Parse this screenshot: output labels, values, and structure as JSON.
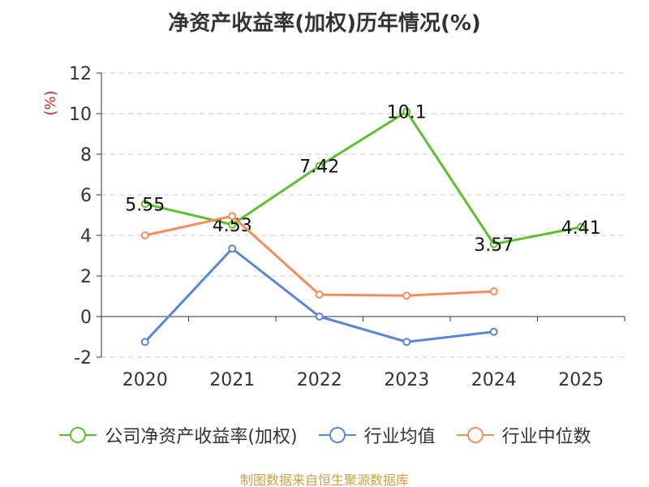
{
  "chart_data": {
    "type": "line",
    "title": "净资产收益率(加权)历年情况(%)",
    "ylabel": "(%)",
    "xlabel": "",
    "categories": [
      "2020",
      "2021",
      "2022",
      "2023",
      "2024",
      "2025"
    ],
    "ylim": [
      -2,
      12
    ],
    "yticks": [
      -2,
      0,
      2,
      4,
      6,
      8,
      10,
      12
    ],
    "grid": true,
    "legend_position": "bottom",
    "series": [
      {
        "name": "公司净资产收益率(加权)",
        "color": "#5cc12c",
        "values": [
          5.55,
          4.53,
          7.42,
          10.1,
          3.57,
          4.41
        ],
        "labels": [
          "5.55",
          "4.53",
          "7.42",
          "10.1",
          "3.57",
          "4.41"
        ],
        "show_labels": true
      },
      {
        "name": "行业均值",
        "color": "#5b86d6",
        "values": [
          -1.25,
          3.35,
          0.0,
          -1.25,
          -0.75,
          null
        ],
        "show_labels": false
      },
      {
        "name": "行业中位数",
        "color": "#f58c5c",
        "values": [
          4.0,
          4.95,
          1.08,
          1.03,
          1.24,
          null
        ],
        "show_labels": false
      }
    ]
  },
  "source": "制图数据来自恒生聚源数据库"
}
